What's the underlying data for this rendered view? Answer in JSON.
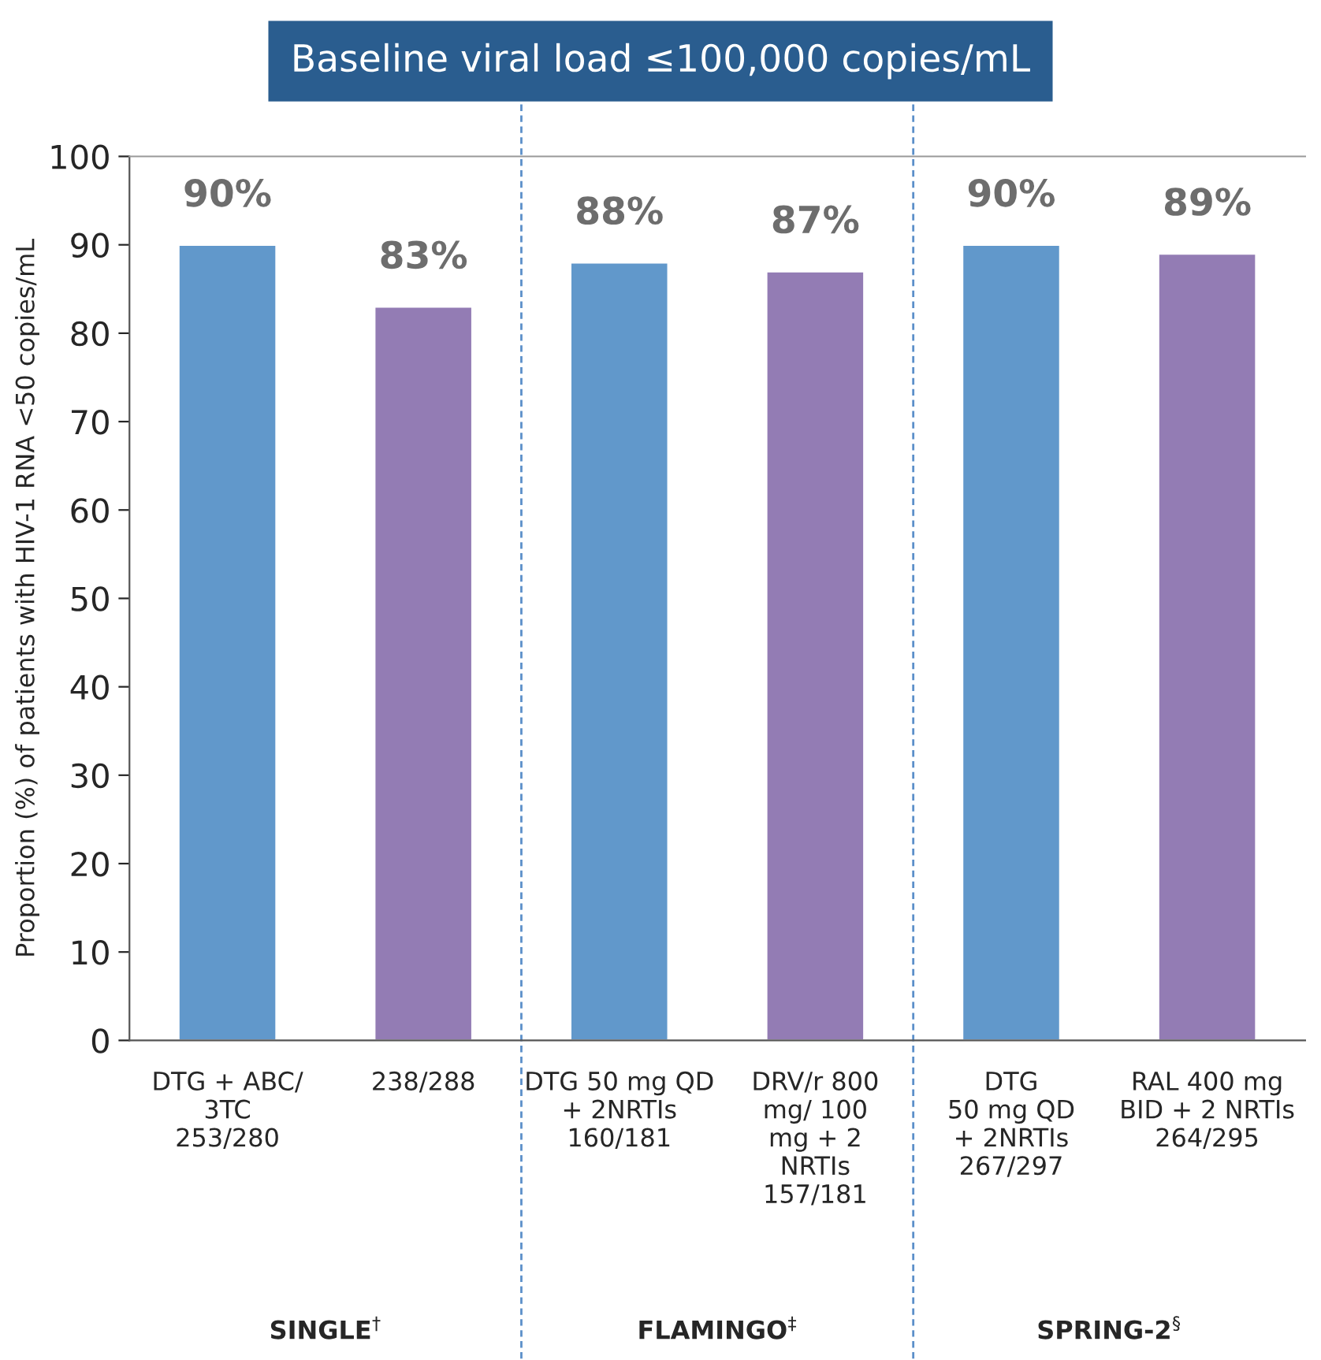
{
  "chart_data": {
    "type": "bar",
    "title": "Baseline viral load ≤100,000 copies/mL",
    "ylabel": "Proportion (%) of patients with HIV-1 RNA <50 copies/mL",
    "categories": [
      "DTG + ABC/\n3TC\n253/280",
      "238/288",
      "DTG 50 mg QD\n+ 2NRTIs\n160/181",
      "DRV/r 800\nmg/ 100\nmg + 2\nNRTIs\n157/181",
      "DTG\n50 mg QD\n+ 2NRTIs\n267/297",
      "RAL 400 mg\nBID + 2 NRTIs\n264/295"
    ],
    "values": [
      90,
      83,
      88,
      87,
      90,
      89
    ],
    "value_labels": [
      "90%",
      "83%",
      "88%",
      "87%",
      "90%",
      "89%"
    ],
    "colors": [
      "#6198cb",
      "#937cb4",
      "#6198cb",
      "#937cb4",
      "#6198cb",
      "#937cb4"
    ],
    "ylim": [
      0,
      100
    ],
    "yticks": [
      0,
      10,
      20,
      30,
      40,
      50,
      60,
      70,
      80,
      90,
      100
    ],
    "annotations": [
      "SINGLE$^{†}$",
      "FLAMINGO$^{‡}$",
      "SPRING-2$^{§}$"
    ],
    "grid": false,
    "legend": false
  }
}
